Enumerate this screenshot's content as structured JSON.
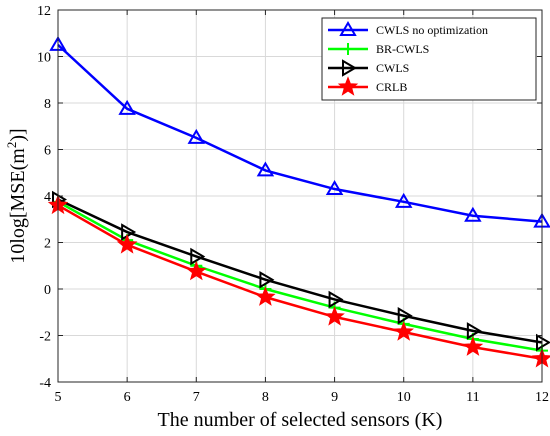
{
  "chart_data": {
    "type": "line",
    "title": "",
    "xlabel": "The number of selected sensors (K)",
    "ylabel_prefix": "10log[MSE(m",
    "ylabel_exponent": "2",
    "ylabel_suffix": ")]",
    "x": [
      5,
      6,
      7,
      8,
      9,
      10,
      11,
      12
    ],
    "xlim": [
      5,
      12
    ],
    "ylim": [
      -4,
      12
    ],
    "xticks": [
      5,
      6,
      7,
      8,
      9,
      10,
      11,
      12
    ],
    "yticks": [
      -4,
      -2,
      0,
      2,
      4,
      6,
      8,
      10,
      12
    ],
    "grid": true,
    "legend_position": "top-right",
    "series": [
      {
        "name": "CWLS no optimization",
        "color": "#0000ff",
        "marker": "triangle-up",
        "values": [
          10.5,
          7.75,
          6.5,
          5.1,
          4.3,
          3.75,
          3.15,
          2.9
        ]
      },
      {
        "name": "BR-CWLS",
        "color": "#00ff00",
        "marker": "plus",
        "values": [
          3.75,
          2.1,
          1.0,
          0.0,
          -0.8,
          -1.5,
          -2.15,
          -2.65
        ]
      },
      {
        "name": "CWLS",
        "color": "#000000",
        "marker": "triangle-right",
        "values": [
          3.85,
          2.45,
          1.4,
          0.4,
          -0.45,
          -1.15,
          -1.8,
          -2.3
        ]
      },
      {
        "name": "CRLB",
        "color": "#ff0000",
        "marker": "star",
        "values": [
          3.6,
          1.9,
          0.75,
          -0.35,
          -1.2,
          -1.85,
          -2.5,
          -3.0
        ]
      }
    ]
  }
}
